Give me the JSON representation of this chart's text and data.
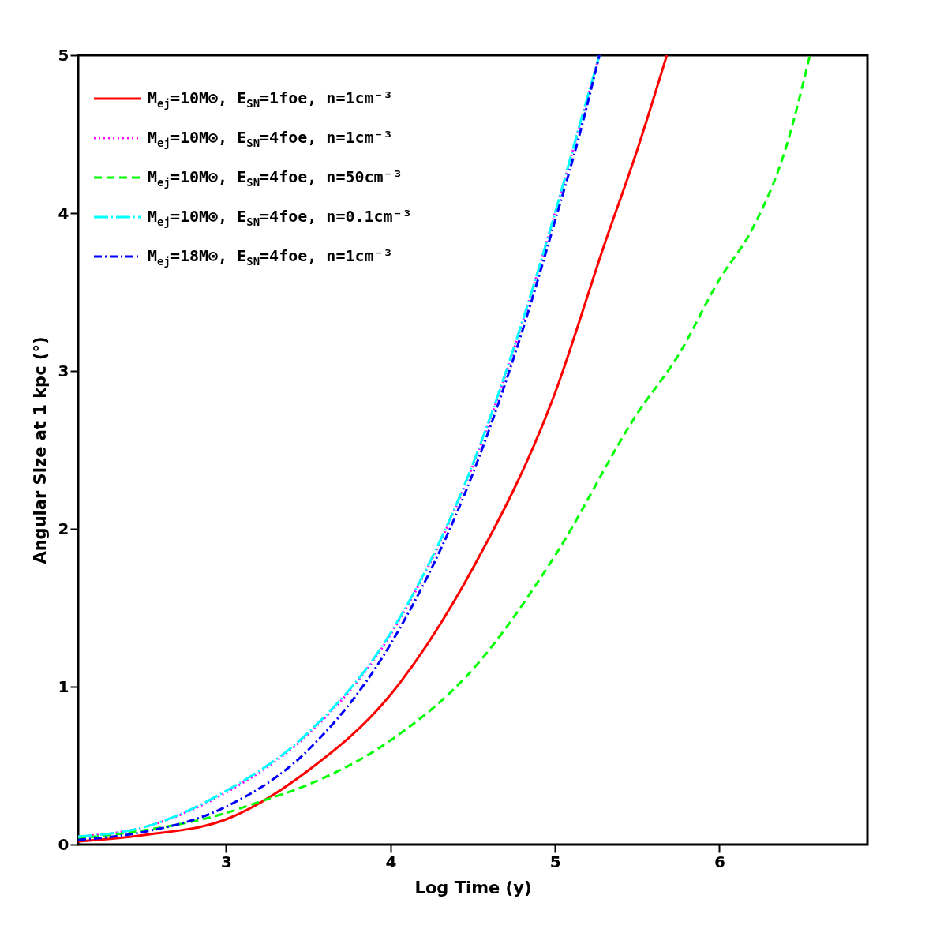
{
  "chart_data": {
    "type": "line",
    "xlabel": "Log Time (y)",
    "ylabel": "Angular Size at 1 kpc (°)",
    "xlim": [
      2.1,
      6.9
    ],
    "ylim": [
      0,
      5
    ],
    "xticks": [
      3,
      4,
      5,
      6
    ],
    "yticks": [
      0,
      1,
      2,
      3,
      4,
      5
    ],
    "grid": false,
    "legend": "top left",
    "series": [
      {
        "name": "M$_{ej}$=10M⊙, E$_{SN}$=1foe, n=1cm⁻³",
        "color": "#ff0000",
        "line_style": "solid",
        "x": [
          2.1,
          2.5,
          3,
          3.5,
          4,
          4.5,
          5,
          5.3,
          5.5,
          5.68
        ],
        "values": [
          0.02,
          0.06,
          0.16,
          0.47,
          0.95,
          1.75,
          2.86,
          3.8,
          4.4,
          5.0
        ]
      },
      {
        "name": "M$_{ej}$=10M⊙, E$_{SN}$=4foe, n=1cm⁻³",
        "color": "#ff00ff",
        "line_style": "dotted",
        "x": [
          2.1,
          2.5,
          3,
          3.5,
          4,
          4.5,
          4.8,
          5,
          5.15,
          5.27
        ],
        "values": [
          0.05,
          0.11,
          0.33,
          0.7,
          1.33,
          2.4,
          3.3,
          4.0,
          4.55,
          5.0
        ]
      },
      {
        "name": "M$_{ej}$=10M⊙, E$_{SN}$=4foe, n=50cm⁻³",
        "color": "#00ff00",
        "line_style": "dashed",
        "x": [
          2.1,
          2.5,
          3,
          3.2,
          3.5,
          4,
          4.5,
          5,
          5.5,
          5.75,
          6,
          6.2,
          6.4,
          6.55
        ],
        "values": [
          0.04,
          0.09,
          0.2,
          0.27,
          0.38,
          0.66,
          1.11,
          1.83,
          2.73,
          3.1,
          3.58,
          3.9,
          4.4,
          5.0
        ]
      },
      {
        "name": "M$_{ej}$=10M⊙, E$_{SN}$=4foe, n=0.1cm⁻³",
        "color": "#00ffff",
        "line_style": "longdashdot",
        "x": [
          2.1,
          2.5,
          3,
          3.5,
          4,
          4.5,
          4.8,
          5,
          5.15,
          5.27
        ],
        "values": [
          0.05,
          0.11,
          0.34,
          0.71,
          1.34,
          2.41,
          3.31,
          4.0,
          4.56,
          5.0
        ]
      },
      {
        "name": "M$_{ej}$=18M⊙, E$_{SN}$=4foe, n=1cm⁻³",
        "color": "#0000ff",
        "line_style": "dashdot",
        "x": [
          2.1,
          2.5,
          3,
          3.5,
          4,
          4.5,
          4.8,
          5,
          5.15,
          5.27
        ],
        "values": [
          0.03,
          0.08,
          0.24,
          0.6,
          1.27,
          2.35,
          3.25,
          3.95,
          4.5,
          5.0
        ]
      }
    ]
  }
}
